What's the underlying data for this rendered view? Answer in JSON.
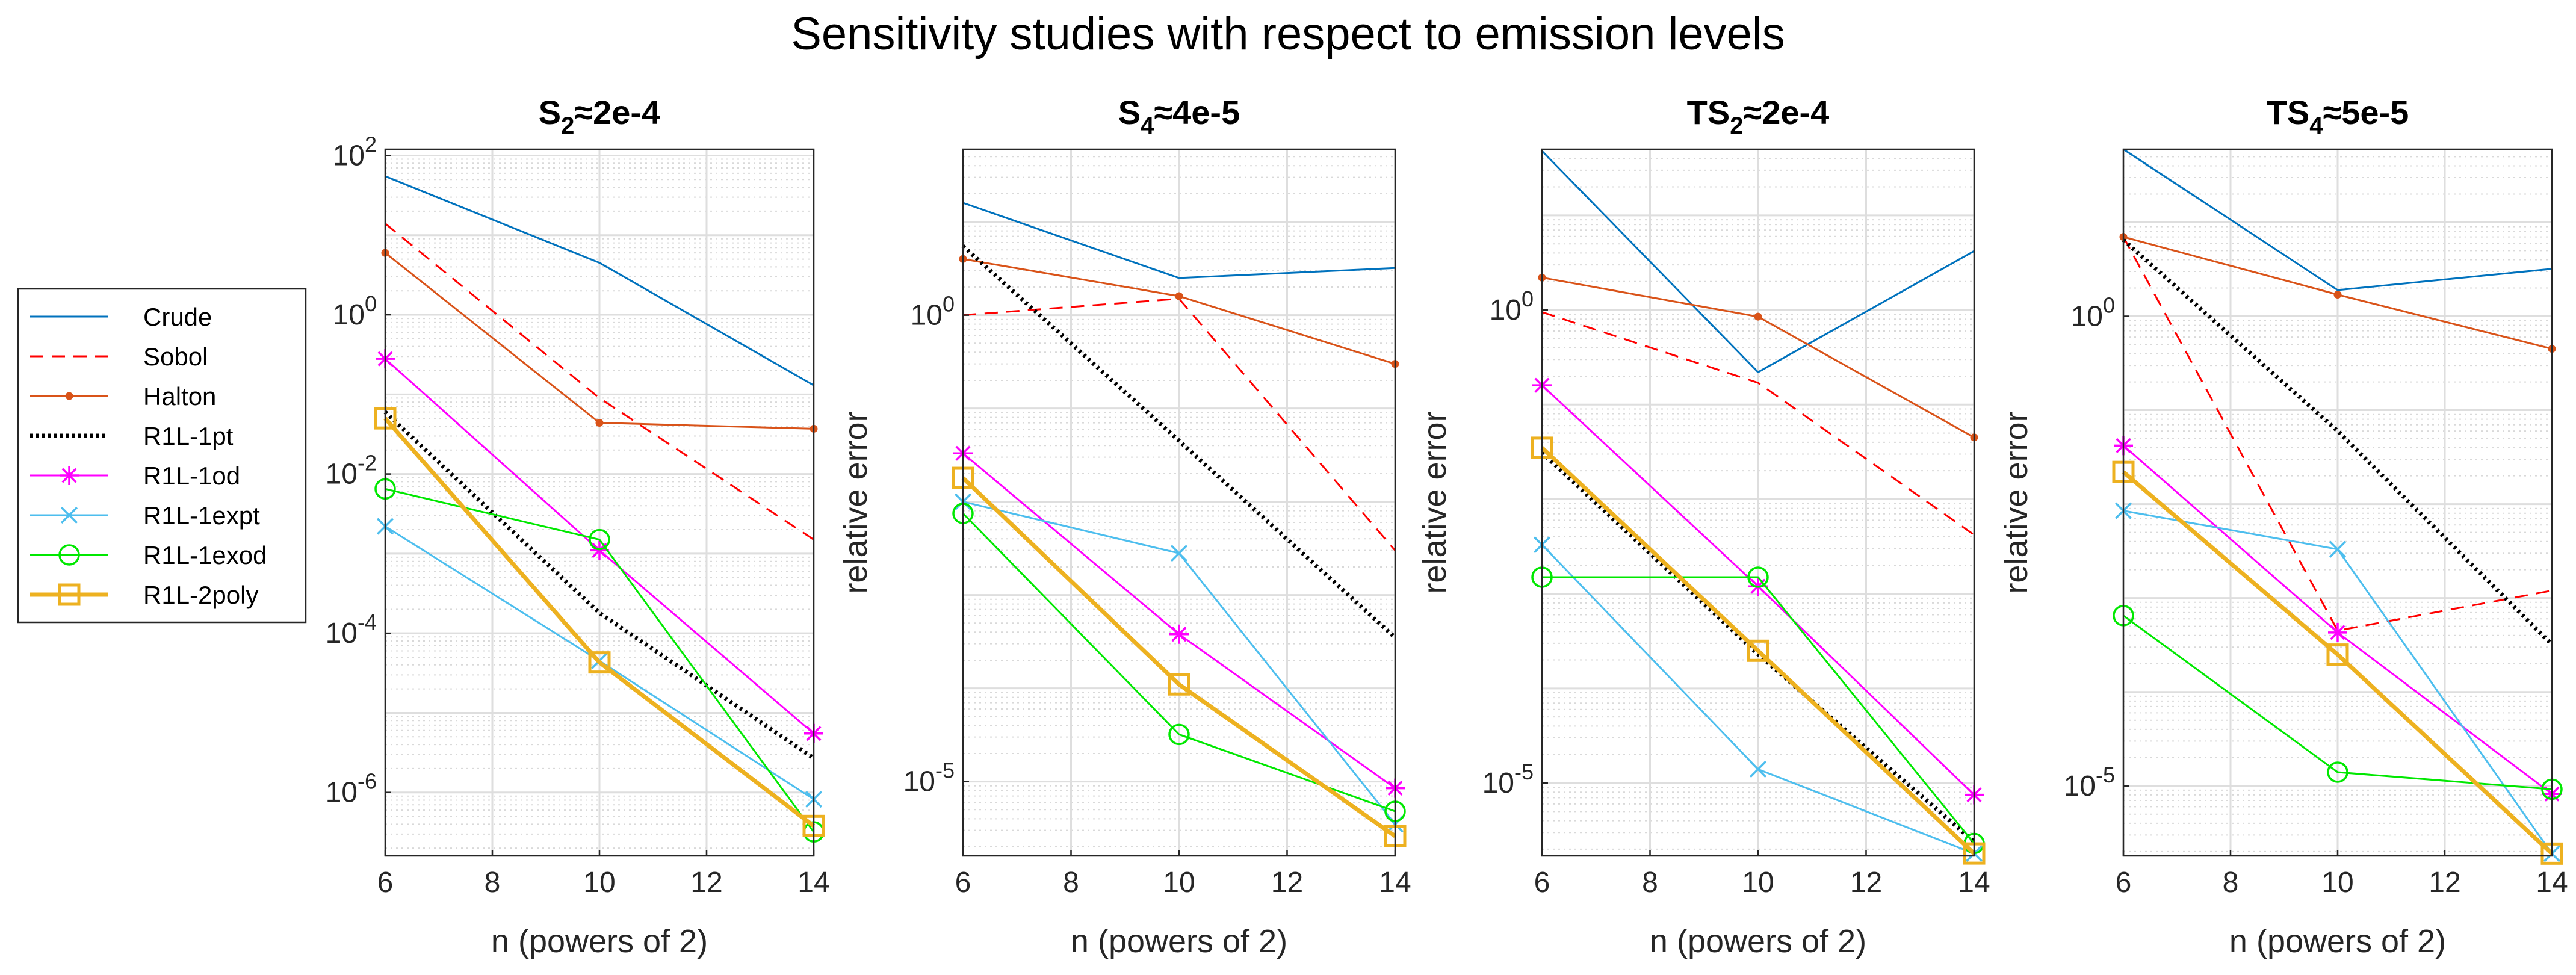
{
  "figure_title": "Sensitivity studies with respect to emission levels",
  "legend": {
    "entries": [
      {
        "label": "Crude",
        "color": "#0072BD",
        "dash": "",
        "width": 3,
        "marker": "none"
      },
      {
        "label": "Sobol",
        "color": "#FF0000",
        "dash": "22,14",
        "width": 3,
        "marker": "none"
      },
      {
        "label": "Halton",
        "color": "#D95319",
        "dash": "",
        "width": 3,
        "marker": "dot"
      },
      {
        "label": "R1L-1pt",
        "color": "#000000",
        "dash": "4,6",
        "width": 7,
        "marker": "none"
      },
      {
        "label": "R1L-1od",
        "color": "#FF00FF",
        "dash": "",
        "width": 3,
        "marker": "star"
      },
      {
        "label": "R1L-1expt",
        "color": "#4DBEEE",
        "dash": "",
        "width": 3,
        "marker": "x"
      },
      {
        "label": "R1L-1exod",
        "color": "#00E800",
        "dash": "",
        "width": 3,
        "marker": "circle"
      },
      {
        "label": "R1L-2poly",
        "color": "#EDB120",
        "dash": "",
        "width": 7,
        "marker": "square"
      }
    ]
  },
  "chart_data": [
    {
      "type": "line",
      "title_main": "S",
      "title_sub": "2",
      "title_rest": "≈2e-4",
      "xlabel": "n (powers of 2)",
      "ylabel": "",
      "yscale": "log",
      "xlim": [
        6,
        14
      ],
      "ylim": [
        1.6e-07,
        120
      ],
      "xticks": [
        6,
        8,
        10,
        12,
        14
      ],
      "ytick_exps": [
        -6,
        -4,
        -2,
        0,
        2
      ],
      "grid": true,
      "x": [
        6,
        10,
        14
      ],
      "series": [
        {
          "name": "Crude",
          "values": [
            55,
            4.5,
            0.13
          ]
        },
        {
          "name": "Sobol",
          "values": [
            14,
            0.09,
            0.0015
          ]
        },
        {
          "name": "Halton",
          "values": [
            6,
            0.044,
            0.037
          ]
        },
        {
          "name": "R1L-1pt",
          "values": [
            0.06,
            0.00018,
            2.7e-06
          ]
        },
        {
          "name": "R1L-1od",
          "values": [
            0.28,
            0.0011,
            5.5e-06
          ]
        },
        {
          "name": "R1L-1expt",
          "values": [
            0.0022,
            4.5e-05,
            8.2e-07
          ]
        },
        {
          "name": "R1L-1exod",
          "values": [
            0.0065,
            0.0015,
            3.2e-07
          ]
        },
        {
          "name": "R1L-2poly",
          "values": [
            0.05,
            4.3e-05,
            3.8e-07
          ]
        }
      ]
    },
    {
      "type": "line",
      "title_main": "S",
      "title_sub": "4",
      "title_rest": "≈4e-5",
      "xlabel": "n (powers of 2)",
      "ylabel": "relative error",
      "yscale": "log",
      "xlim": [
        6,
        14
      ],
      "ylim": [
        1.6e-06,
        60
      ],
      "xticks": [
        6,
        8,
        10,
        12,
        14
      ],
      "ytick_exps": [
        -5,
        0
      ],
      "grid": true,
      "x": [
        6,
        10,
        14
      ],
      "series": [
        {
          "name": "Crude",
          "values": [
            16,
            2.5,
            3.2
          ]
        },
        {
          "name": "Sobol",
          "values": [
            1.0,
            1.5,
            0.003
          ]
        },
        {
          "name": "Halton",
          "values": [
            4,
            1.6,
            0.3
          ]
        },
        {
          "name": "R1L-1pt",
          "values": [
            5.5,
            0.045,
            0.00035
          ]
        },
        {
          "name": "R1L-1od",
          "values": [
            0.033,
            0.00038,
            8.5e-06
          ]
        },
        {
          "name": "R1L-1expt",
          "values": [
            0.01,
            0.0028,
            3.5e-06
          ]
        },
        {
          "name": "R1L-1exod",
          "values": [
            0.0075,
            3.2e-05,
            4.8e-06
          ]
        },
        {
          "name": "R1L-2poly",
          "values": [
            0.018,
            0.00011,
            2.6e-06
          ]
        }
      ]
    },
    {
      "type": "line",
      "title_main": "TS",
      "title_sub": "2",
      "title_rest": "≈2e-4",
      "xlabel": "n (powers of 2)",
      "ylabel": "relative error",
      "yscale": "log",
      "xlim": [
        6,
        14
      ],
      "ylim": [
        1.7e-06,
        50
      ],
      "xticks": [
        6,
        8,
        10,
        12,
        14
      ],
      "ytick_exps": [
        -5,
        0
      ],
      "grid": true,
      "x": [
        6,
        10,
        14
      ],
      "series": [
        {
          "name": "Crude",
          "values": [
            48,
            0.22,
            4.2
          ]
        },
        {
          "name": "Sobol",
          "values": [
            0.95,
            0.17,
            0.0042
          ]
        },
        {
          "name": "Halton",
          "values": [
            2.2,
            0.85,
            0.045
          ]
        },
        {
          "name": "R1L-1pt",
          "values": [
            0.031,
            0.00023,
            2.4e-06
          ]
        },
        {
          "name": "R1L-1od",
          "values": [
            0.16,
            0.0012,
            7.5e-06
          ]
        },
        {
          "name": "R1L-1expt",
          "values": [
            0.0033,
            1.4e-05,
            1.8e-06
          ]
        },
        {
          "name": "R1L-1exod",
          "values": [
            0.0015,
            0.0015,
            2.3e-06
          ]
        },
        {
          "name": "R1L-2poly",
          "values": [
            0.035,
            0.00025,
            1.8e-06
          ]
        }
      ]
    },
    {
      "type": "line",
      "title_main": "TS",
      "title_sub": "4",
      "title_rest": "≈5e-5",
      "xlabel": "n (powers of 2)",
      "ylabel": "relative error",
      "yscale": "log",
      "xlim": [
        6,
        14
      ],
      "ylim": [
        1.8e-06,
        60
      ],
      "xticks": [
        6,
        8,
        10,
        12,
        14
      ],
      "ytick_exps": [
        -5,
        0
      ],
      "grid": true,
      "x": [
        6,
        10,
        14
      ],
      "series": [
        {
          "name": "Crude",
          "values": [
            60,
            1.9,
            3.2
          ]
        },
        {
          "name": "Sobol",
          "values": [
            7.0,
            0.00045,
            0.0012
          ]
        },
        {
          "name": "Halton",
          "values": [
            7.0,
            1.7,
            0.45
          ]
        },
        {
          "name": "R1L-1pt",
          "values": [
            6.5,
            0.06,
            0.00032
          ]
        },
        {
          "name": "R1L-1od",
          "values": [
            0.042,
            0.00043,
            8.2e-06
          ]
        },
        {
          "name": "R1L-1expt",
          "values": [
            0.0085,
            0.0033,
            1.9e-06
          ]
        },
        {
          "name": "R1L-1exod",
          "values": [
            0.00065,
            1.4e-05,
            9.2e-06
          ]
        },
        {
          "name": "R1L-2poly",
          "values": [
            0.022,
            0.00025,
            1.9e-06
          ]
        }
      ]
    }
  ]
}
